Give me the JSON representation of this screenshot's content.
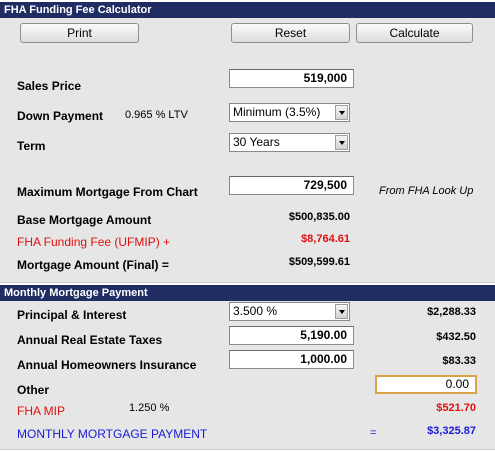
{
  "calculator": {
    "title": "FHA Funding Fee Calculator",
    "buttons": {
      "print": "Print",
      "reset": "Reset",
      "calculate": "Calculate"
    },
    "sales_price": {
      "label": "Sales Price",
      "value": "519,000"
    },
    "down_payment": {
      "label": "Down Payment",
      "ltv_text": "0.965 % LTV",
      "selected": "Minimum (3.5%)"
    },
    "term": {
      "label": "Term",
      "selected": "30 Years"
    },
    "max_mortgage": {
      "label": "Maximum Mortgage From Chart",
      "value": "729,500",
      "note": "From FHA Look Up"
    },
    "base_mortgage": {
      "label": "Base Mortgage Amount",
      "value": "$500,835.00"
    },
    "funding_fee": {
      "label": "FHA Funding Fee (UFMIP) +",
      "value": "$8,764.61"
    },
    "mortgage_final": {
      "label": "Mortgage Amount (Final) =",
      "value": "$509,599.61"
    }
  },
  "monthly": {
    "title": "Monthly Mortgage Payment",
    "principal_interest": {
      "label": "Principal & Interest",
      "rate": "3.500 %",
      "value": "$2,288.33"
    },
    "taxes": {
      "label": "Annual Real Estate Taxes",
      "input": "5,190.00",
      "value": "$432.50"
    },
    "insurance": {
      "label": "Annual Homeowners Insurance",
      "input": "1,000.00",
      "value": "$83.33"
    },
    "other": {
      "label": "Other",
      "input": "0.00"
    },
    "mip": {
      "label": "FHA MIP",
      "rate": "1.250 %",
      "value": "$521.70"
    },
    "total": {
      "label": "MONTHLY MORTGAGE PAYMENT",
      "equals": "=",
      "value": "$3,325.87"
    }
  },
  "colors": {
    "header_bg": "#1f2d63",
    "panel_bg": "#e6e6e6",
    "red": "#e01010",
    "blue": "#1a1ad6",
    "active_border": "#d9a447"
  }
}
